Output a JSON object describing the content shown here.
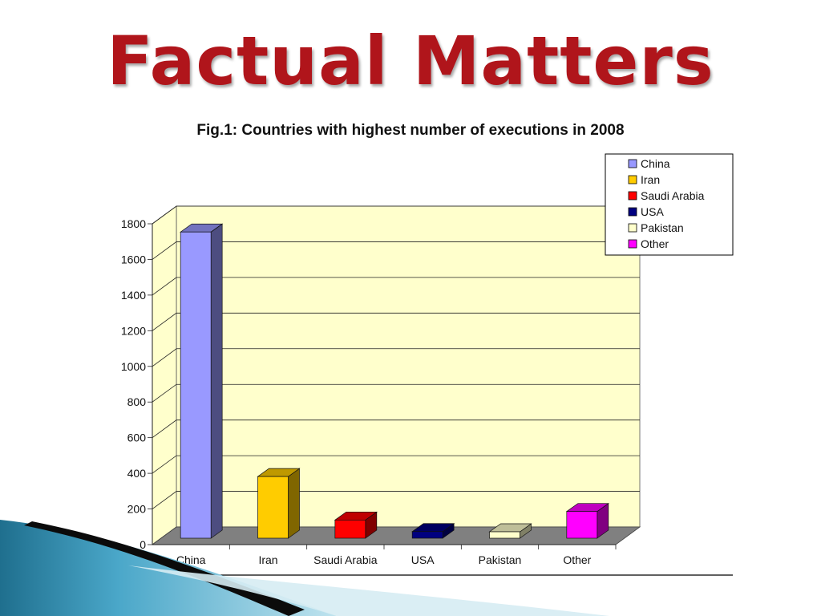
{
  "slide": {
    "title": "Factual Matters",
    "colors": {
      "title": "#b0151b",
      "wall": "#ffffcc",
      "floor": "#808080"
    }
  },
  "chart_data": {
    "type": "bar",
    "title": "Fig.1: Countries with highest number of executions in 2008",
    "categories": [
      "China",
      "Iran",
      "Saudi Arabia",
      "USA",
      "Pakistan",
      "Other"
    ],
    "values": [
      1718,
      346,
      102,
      37,
      36,
      150
    ],
    "colors": [
      "#9999ff",
      "#ffcc00",
      "#ff0000",
      "#000080",
      "#ffffcc",
      "#ff00ff"
    ],
    "ylim": [
      0,
      1800
    ],
    "yticks": [
      "0",
      "200",
      "400",
      "600",
      "800",
      "1000",
      "1200",
      "1400",
      "1600",
      "1800"
    ],
    "legend": {
      "position": "top-right",
      "entries": [
        "China",
        "Iran",
        "Saudi Arabia",
        "USA",
        "Pakistan",
        "Other"
      ]
    },
    "grid": true,
    "xlabel": "",
    "ylabel": ""
  }
}
